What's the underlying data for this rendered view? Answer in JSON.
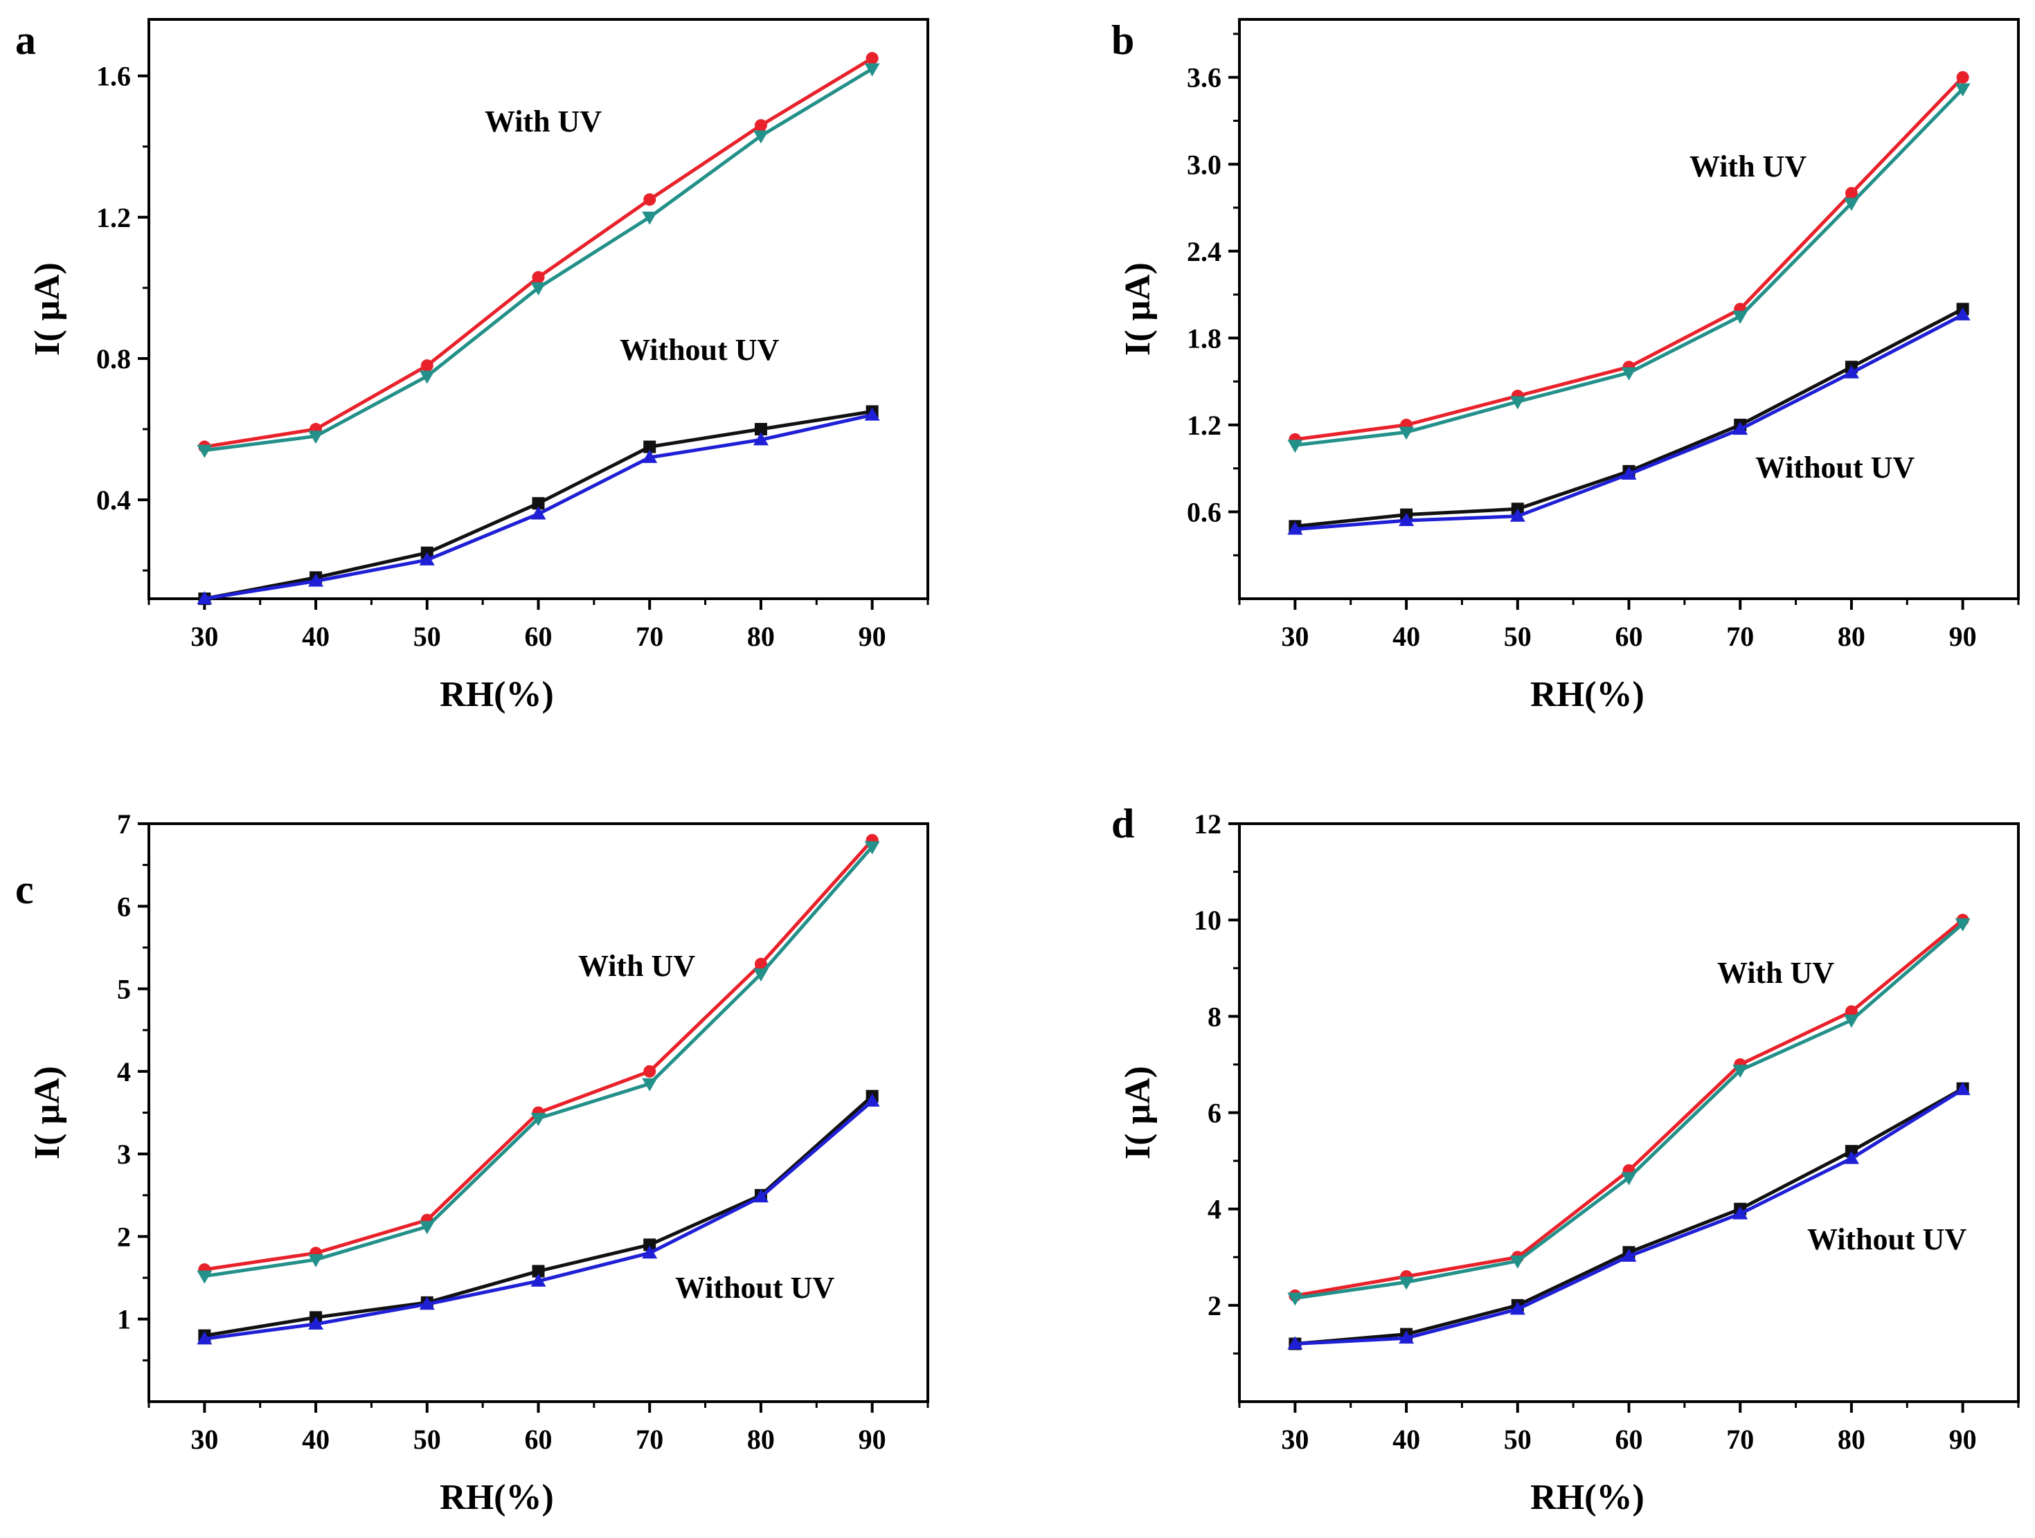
{
  "chart_data": [
    {
      "panel_label": "a",
      "type": "line",
      "xlabel": "RH(%)",
      "ylabel": "I( μA)",
      "x": [
        30,
        40,
        50,
        60,
        70,
        80,
        90
      ],
      "xticks": [
        "30",
        "40",
        "50",
        "60",
        "70",
        "80",
        "90"
      ],
      "xlim": [
        25,
        95
      ],
      "ylim": [
        0.12,
        1.76
      ],
      "yticks": [
        "0.4",
        "0.8",
        "1.2",
        "1.6"
      ],
      "ytick_values": [
        0.4,
        0.8,
        1.2,
        1.6
      ],
      "annotations": [
        "With UV",
        "Without UV"
      ],
      "series": [
        {
          "values": [
            0.55,
            0.6,
            0.78,
            1.03,
            1.25,
            1.46,
            1.65
          ],
          "color": "#e8212a",
          "marker": "circle"
        },
        {
          "values": [
            0.54,
            0.58,
            0.75,
            1.0,
            1.2,
            1.43,
            1.62
          ],
          "color": "#23908a",
          "marker": "triangle-down"
        },
        {
          "values": [
            0.12,
            0.18,
            0.25,
            0.39,
            0.55,
            0.6,
            0.65
          ],
          "color": "#111111",
          "marker": "square"
        },
        {
          "values": [
            0.12,
            0.17,
            0.23,
            0.36,
            0.52,
            0.57,
            0.64
          ],
          "color": "#1f1fd6",
          "marker": "triangle-up"
        }
      ]
    },
    {
      "panel_label": "b",
      "type": "line",
      "xlabel": "RH(%)",
      "ylabel": "I( μA)",
      "x": [
        30,
        40,
        50,
        60,
        70,
        80,
        90
      ],
      "xticks": [
        "30",
        "40",
        "50",
        "60",
        "70",
        "80",
        "90"
      ],
      "xlim": [
        25,
        95
      ],
      "ylim": [
        0.0,
        4.0
      ],
      "yticks": [
        "0.6",
        "1.2",
        "1.8",
        "2.4",
        "3.0",
        "3.6"
      ],
      "ytick_values": [
        0.6,
        1.2,
        1.8,
        2.4,
        3.0,
        3.6
      ],
      "annotations": [
        "With UV",
        "Without UV"
      ],
      "series": [
        {
          "values": [
            1.1,
            1.2,
            1.4,
            1.6,
            2.0,
            2.8,
            3.6
          ],
          "color": "#e8212a",
          "marker": "circle"
        },
        {
          "values": [
            1.06,
            1.15,
            1.36,
            1.56,
            1.95,
            2.73,
            3.52
          ],
          "color": "#23908a",
          "marker": "triangle-down"
        },
        {
          "values": [
            0.5,
            0.58,
            0.62,
            0.88,
            1.2,
            1.6,
            2.0
          ],
          "color": "#111111",
          "marker": "square"
        },
        {
          "values": [
            0.48,
            0.54,
            0.57,
            0.86,
            1.17,
            1.56,
            1.96
          ],
          "color": "#1f1fd6",
          "marker": "triangle-up"
        }
      ]
    },
    {
      "panel_label": "c",
      "type": "line",
      "xlabel": "RH(%)",
      "ylabel": "I( μA)",
      "x": [
        30,
        40,
        50,
        60,
        70,
        80,
        90
      ],
      "xticks": [
        "30",
        "40",
        "50",
        "60",
        "70",
        "80",
        "90"
      ],
      "xlim": [
        25,
        95
      ],
      "ylim": [
        0.0,
        7.0
      ],
      "yticks": [
        "1",
        "2",
        "3",
        "4",
        "5",
        "6",
        "7"
      ],
      "ytick_values": [
        1,
        2,
        3,
        4,
        5,
        6,
        7
      ],
      "annotations": [
        "With UV",
        "Without UV"
      ],
      "series": [
        {
          "values": [
            1.6,
            1.8,
            2.2,
            3.5,
            4.0,
            5.3,
            6.8
          ],
          "color": "#e8212a",
          "marker": "circle"
        },
        {
          "values": [
            1.52,
            1.72,
            2.12,
            3.43,
            3.85,
            5.18,
            6.72
          ],
          "color": "#23908a",
          "marker": "triangle-down"
        },
        {
          "values": [
            0.8,
            1.02,
            1.2,
            1.58,
            1.9,
            2.5,
            3.7
          ],
          "color": "#111111",
          "marker": "square"
        },
        {
          "values": [
            0.76,
            0.94,
            1.18,
            1.46,
            1.8,
            2.48,
            3.64
          ],
          "color": "#1f1fd6",
          "marker": "triangle-up"
        }
      ]
    },
    {
      "panel_label": "d",
      "type": "line",
      "xlabel": "RH(%)",
      "ylabel": "I( μA)",
      "x": [
        30,
        40,
        50,
        60,
        70,
        80,
        90
      ],
      "xticks": [
        "30",
        "40",
        "50",
        "60",
        "70",
        "80",
        "90"
      ],
      "xlim": [
        25,
        95
      ],
      "ylim": [
        0.0,
        12.0
      ],
      "yticks": [
        "2",
        "4",
        "6",
        "8",
        "10",
        "12"
      ],
      "ytick_values": [
        2,
        4,
        6,
        8,
        10,
        12
      ],
      "annotations": [
        "With UV",
        "Without UV"
      ],
      "series": [
        {
          "values": [
            2.2,
            2.6,
            3.0,
            4.8,
            7.0,
            8.1,
            10.0
          ],
          "color": "#e8212a",
          "marker": "circle"
        },
        {
          "values": [
            2.15,
            2.48,
            2.92,
            4.65,
            6.88,
            7.92,
            9.92
          ],
          "color": "#23908a",
          "marker": "triangle-down"
        },
        {
          "values": [
            1.2,
            1.4,
            2.0,
            3.1,
            4.0,
            5.2,
            6.5
          ],
          "color": "#111111",
          "marker": "square"
        },
        {
          "values": [
            1.2,
            1.32,
            1.92,
            3.02,
            3.9,
            5.05,
            6.48
          ],
          "color": "#1f1fd6",
          "marker": "triangle-up"
        }
      ]
    }
  ]
}
